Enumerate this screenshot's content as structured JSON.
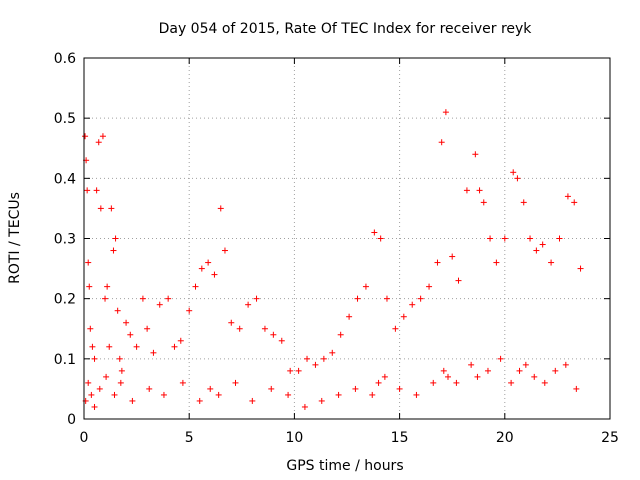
{
  "chart_data": {
    "type": "scatter",
    "title": "Day 054 of 2015, Rate Of TEC Index for receiver reyk",
    "xlabel": "GPS time / hours",
    "ylabel": "ROTI / TECUs",
    "xlim": [
      0,
      25
    ],
    "ylim": [
      0,
      0.6
    ],
    "xticks": [
      0,
      5,
      10,
      15,
      20,
      25
    ],
    "xtick_labels": [
      "0",
      "5",
      "10",
      "15",
      "20",
      "25"
    ],
    "yticks": [
      0,
      0.1,
      0.2,
      0.3,
      0.4,
      0.5,
      0.6
    ],
    "ytick_labels": [
      "0",
      "0.1",
      "0.2",
      "0.3",
      "0.4",
      "0.5",
      "0.6"
    ],
    "grid": true,
    "marker": "+",
    "color": "#ff0000",
    "series": [
      {
        "name": "ROTI",
        "x": [
          0.05,
          0.1,
          0.15,
          0.2,
          0.25,
          0.3,
          0.4,
          0.5,
          0.6,
          0.7,
          0.8,
          0.9,
          1.0,
          1.1,
          1.2,
          1.3,
          1.4,
          1.5,
          1.6,
          1.7,
          1.8,
          2.0,
          2.2,
          2.5,
          2.8,
          3.0,
          3.3,
          3.6,
          4.0,
          4.3,
          4.6,
          5.0,
          5.3,
          5.6,
          5.9,
          6.2,
          6.5,
          6.7,
          7.0,
          7.4,
          7.8,
          8.2,
          8.6,
          9.0,
          9.4,
          9.8,
          10.2,
          10.6,
          11.0,
          11.4,
          11.8,
          12.2,
          12.6,
          13.0,
          13.4,
          13.8,
          14.1,
          14.4,
          14.8,
          15.2,
          15.6,
          16.0,
          16.4,
          16.8,
          17.0,
          17.2,
          17.5,
          17.8,
          18.2,
          18.6,
          18.8,
          19.0,
          19.3,
          19.6,
          20.0,
          20.4,
          20.6,
          20.9,
          21.2,
          21.5,
          21.8,
          22.2,
          22.6,
          23.0,
          23.3,
          23.6,
          0.08,
          0.2,
          0.35,
          0.5,
          0.75,
          1.05,
          1.45,
          1.75,
          2.3,
          3.1,
          3.8,
          4.7,
          5.5,
          6.0,
          6.4,
          7.2,
          8.0,
          8.9,
          9.7,
          10.5,
          11.3,
          12.1,
          12.9,
          13.7,
          14.0,
          14.3,
          15.0,
          15.8,
          16.6,
          17.1,
          17.3,
          17.7,
          18.4,
          18.7,
          19.2,
          19.8,
          20.3,
          20.7,
          21.0,
          21.4,
          21.9,
          22.4,
          22.9,
          23.4
        ],
        "y": [
          0.47,
          0.43,
          0.38,
          0.26,
          0.22,
          0.15,
          0.12,
          0.1,
          0.38,
          0.46,
          0.35,
          0.47,
          0.2,
          0.22,
          0.12,
          0.35,
          0.28,
          0.3,
          0.18,
          0.1,
          0.08,
          0.16,
          0.14,
          0.12,
          0.2,
          0.15,
          0.11,
          0.19,
          0.2,
          0.12,
          0.13,
          0.18,
          0.22,
          0.25,
          0.26,
          0.24,
          0.35,
          0.28,
          0.16,
          0.15,
          0.19,
          0.2,
          0.15,
          0.14,
          0.13,
          0.08,
          0.08,
          0.1,
          0.09,
          0.1,
          0.11,
          0.14,
          0.17,
          0.2,
          0.22,
          0.31,
          0.3,
          0.2,
          0.15,
          0.17,
          0.19,
          0.2,
          0.22,
          0.26,
          0.46,
          0.51,
          0.27,
          0.23,
          0.38,
          0.44,
          0.38,
          0.36,
          0.3,
          0.26,
          0.3,
          0.41,
          0.4,
          0.36,
          0.3,
          0.28,
          0.29,
          0.26,
          0.3,
          0.37,
          0.36,
          0.25,
          0.03,
          0.06,
          0.04,
          0.02,
          0.05,
          0.07,
          0.04,
          0.06,
          0.03,
          0.05,
          0.04,
          0.06,
          0.03,
          0.05,
          0.04,
          0.06,
          0.03,
          0.05,
          0.04,
          0.02,
          0.03,
          0.04,
          0.05,
          0.04,
          0.06,
          0.07,
          0.05,
          0.04,
          0.06,
          0.08,
          0.07,
          0.06,
          0.09,
          0.07,
          0.08,
          0.1,
          0.06,
          0.08,
          0.09,
          0.07,
          0.06,
          0.08,
          0.09,
          0.05
        ]
      }
    ]
  }
}
